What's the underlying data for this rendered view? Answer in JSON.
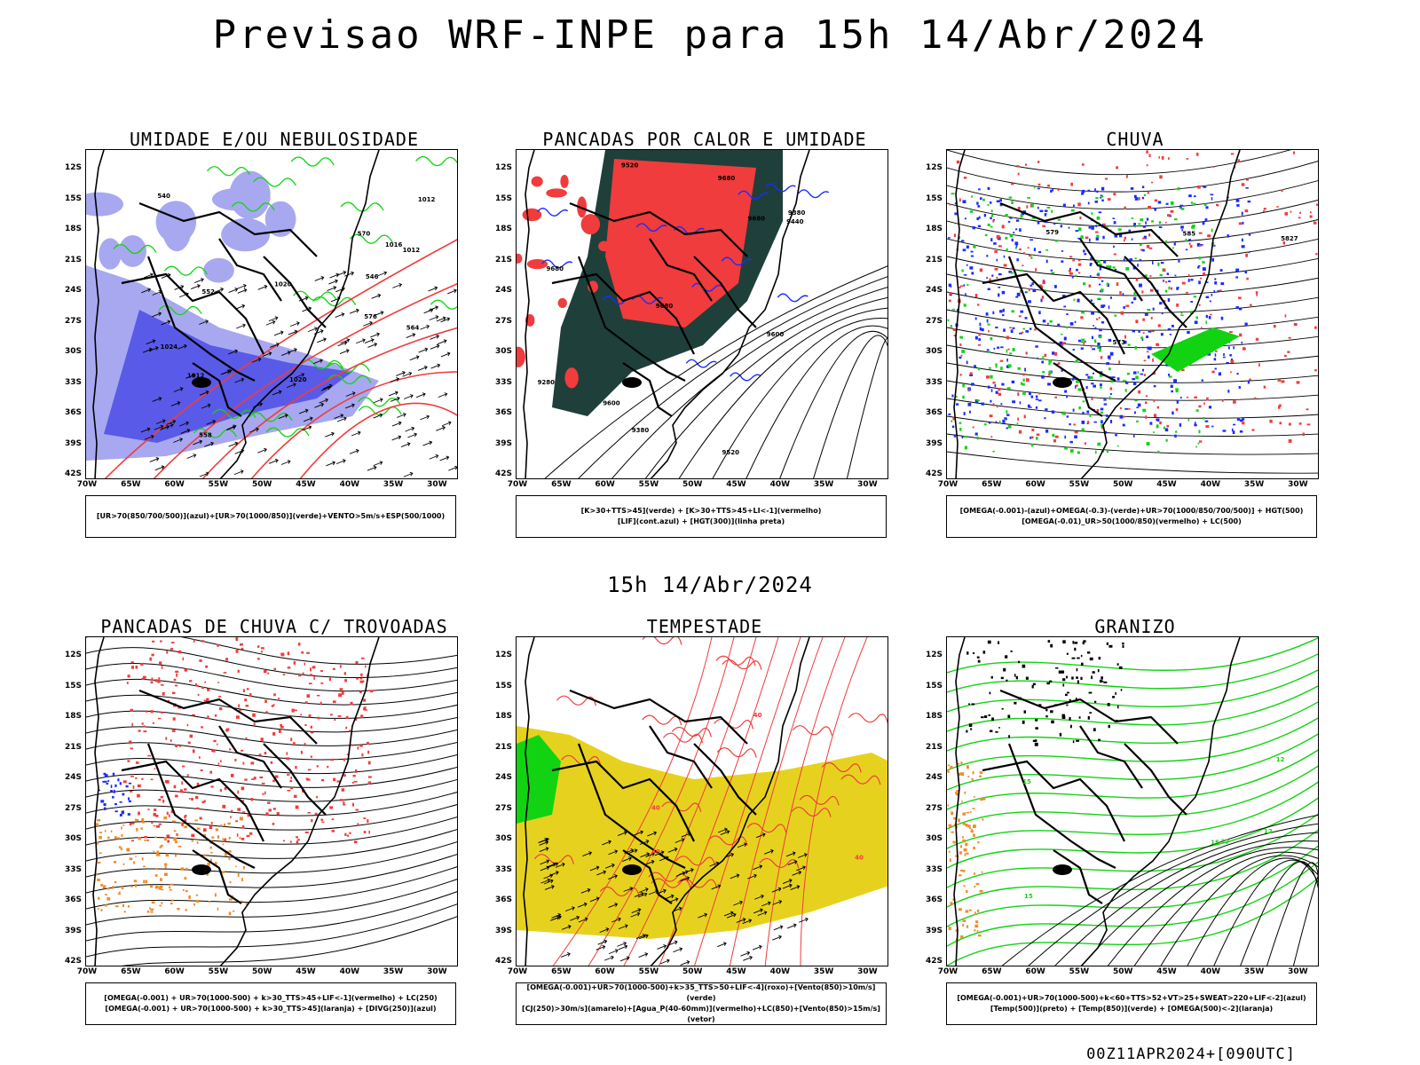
{
  "title": "Previsao WRF-INPE  para 15h 14/Abr/2024",
  "subtitle": "15h 14/Abr/2024",
  "footer": "00Z11APR2024+[090UTC]",
  "axes": {
    "lat": [
      "12S",
      "15S",
      "18S",
      "21S",
      "24S",
      "27S",
      "30S",
      "33S",
      "36S",
      "39S",
      "42S"
    ],
    "lon": [
      "70W",
      "65W",
      "60W",
      "55W",
      "50W",
      "45W",
      "40W",
      "35W",
      "30W"
    ]
  },
  "colors": {
    "blue": "#1a2cff",
    "lightblue": "#a8a8f0",
    "midblue": "#5a5ae8",
    "green": "#12d312",
    "red": "#f03c3c",
    "darkgreen": "#1f3f3a",
    "orange": "#f08c28",
    "yellow": "#e6d21e",
    "black": "#000000"
  },
  "panels": [
    {
      "title": "UMIDADE E/OU NEBULOSIDADE",
      "legend": [
        "[UR>70(850/700/500)](azul)+[UR>70(1000/850)](verde)+VENTO>5m/s+ESP(500/1000)"
      ],
      "contours": [
        "1012",
        "1012",
        "1012",
        "1016",
        "1020",
        "1020",
        "1024",
        "576",
        "570",
        "564",
        "558",
        "552",
        "546",
        "540"
      ]
    },
    {
      "title": "PANCADAS POR CALOR E UMIDADE",
      "legend": [
        "[K>30+TTS>45](verde) + [K>30+TTS>45+LI<-1](vermelho)",
        "[LIF](cont.azul) + [HGT(300)](linha preta)"
      ],
      "contours": [
        "9680",
        "9680",
        "9680",
        "9680",
        "9600",
        "9600",
        "9520",
        "9520",
        "9440",
        "9380",
        "9380",
        "9280"
      ]
    },
    {
      "title": "CHUVA",
      "legend": [
        "[OMEGA(-0.001)-(azul)+OMEGA(-0.3)-(verde)+UR>70(1000/850/700/500)] + HGT(500)",
        "[OMEGA(-0.01)_UR>50(1000/850)(vermelho) + LC(500)"
      ],
      "contours": [
        "585",
        "5827",
        "573",
        "579"
      ]
    },
    {
      "title": "PANCADAS DE CHUVA C/ TROVOADAS",
      "legend": [
        "[OMEGA(-0.001) + UR>70(1000-500) + k>30_TTS>45+LIF<-1](vermelho) + LC(250)",
        "[OMEGA(-0.001) + UR>70(1000-500) + k>30_TTS>45](laranja) + [DIVG(250)](azul)"
      ],
      "contours": []
    },
    {
      "title": "TEMPESTADE",
      "legend": [
        "[OMEGA(-0.001)+UR>70(1000-500)+k>35_TTS>50+LIF<-4](roxo)+[Vento(850)>10m/s](verde)",
        "[CJ(250)>30m/s](amarelo)+[Agua_P(40-60mm)](vermelho)+LC(850)+[Vento(850)>15m/s](vetor)"
      ],
      "contours": [
        "40",
        "40",
        "40",
        "40"
      ]
    },
    {
      "title": "GRANIZO",
      "legend": [
        "[OMEGA(-0.001)+UR>70(1000-500)+k<60+TTS>52+VT>25+SWEAT>220+LIF<-2](azul)",
        "[Temp(500)](preto) + [Temp(850)](verde) + [OMEGA(500)<-2](laranja)"
      ],
      "contours": [
        "15",
        "15",
        "15",
        "12",
        "12",
        "12"
      ]
    }
  ]
}
